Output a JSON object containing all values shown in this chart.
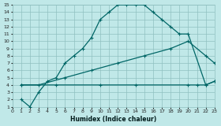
{
  "xlabel": "Humidex (Indice chaleur)",
  "bg_color": "#c0e8e8",
  "grid_color": "#90c0c0",
  "line_color": "#006666",
  "xlim": [
    0,
    23
  ],
  "ylim": [
    1,
    15
  ],
  "xticks": [
    0,
    1,
    2,
    3,
    4,
    5,
    6,
    7,
    8,
    9,
    10,
    11,
    12,
    13,
    14,
    15,
    16,
    17,
    18,
    19,
    20,
    21,
    22,
    23
  ],
  "yticks": [
    1,
    2,
    3,
    4,
    5,
    6,
    7,
    8,
    9,
    10,
    11,
    12,
    13,
    14,
    15
  ],
  "line1_x": [
    1,
    2,
    3,
    4,
    5,
    6,
    7,
    8,
    9,
    10,
    11,
    12,
    13,
    14,
    15,
    16,
    17,
    18,
    19,
    20,
    22,
    23
  ],
  "line1_y": [
    2,
    1,
    3,
    4.5,
    5,
    7,
    8,
    9,
    10.5,
    13,
    14,
    15,
    15,
    15,
    15,
    14,
    13,
    12,
    11,
    11,
    4,
    4.5
  ],
  "line2_x": [
    1,
    3,
    6,
    9,
    12,
    15,
    18,
    20,
    22,
    23
  ],
  "line2_y": [
    4,
    4,
    5,
    6,
    7,
    8,
    9,
    10,
    8,
    7
  ],
  "line3_x": [
    1,
    5,
    10,
    14,
    20,
    21,
    22,
    23
  ],
  "line3_y": [
    4,
    4,
    4,
    4,
    4,
    4,
    4,
    4.5
  ]
}
